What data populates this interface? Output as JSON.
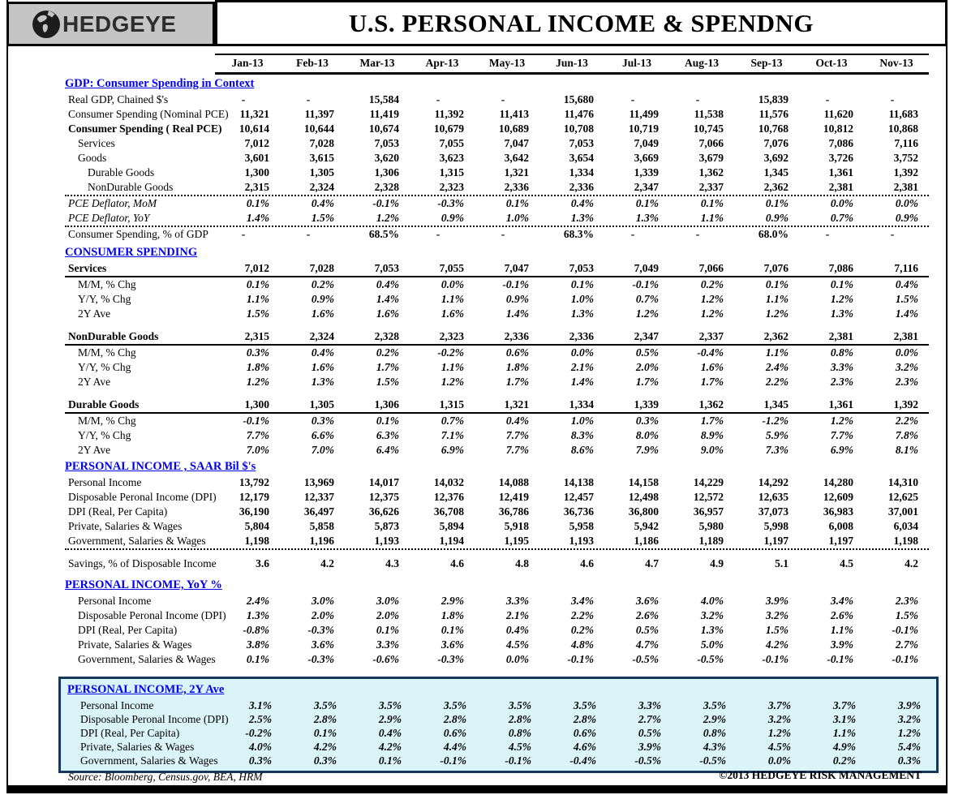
{
  "header": {
    "logo_text": "HEDGEYE",
    "title": "U.S. PERSONAL INCOME & SPENDNG"
  },
  "footer": {
    "source": "Source: Bloomberg, Census.gov, BEA, HRM",
    "copyright": "©2013 HEDGEYE RISK MANAGEMENT"
  },
  "colors": {
    "section_title_blue": "#0000EE",
    "highlight_bg": "#DAF4F9",
    "highlight_border": "#17375D",
    "logo_bg": "#C5C5C5"
  },
  "chart_data": {
    "type": "table",
    "title": "U.S. PERSONAL INCOME & SPENDNG",
    "columns": [
      "Jan-13",
      "Feb-13",
      "Mar-13",
      "Apr-13",
      "May-13",
      "Jun-13",
      "Jul-13",
      "Aug-13",
      "Sep-13",
      "Oct-13",
      "Nov-13"
    ],
    "sections": [
      {
        "title": "GDP: Consumer Spending in Context",
        "rows": [
          {
            "label": "Real GDP, Chained $'s",
            "values": [
              "-",
              "-",
              "15,584",
              "-",
              "-",
              "15,680",
              "-",
              "-",
              "15,839",
              "-",
              "-"
            ]
          },
          {
            "label": "Consumer Spending (Nominal PCE)",
            "values": [
              "11,321",
              "11,397",
              "11,419",
              "11,392",
              "11,413",
              "11,476",
              "11,499",
              "11,538",
              "11,576",
              "11,620",
              "11,683"
            ]
          },
          {
            "label": "Consumer Spending ( Real PCE)",
            "bold": true,
            "values": [
              "10,614",
              "10,644",
              "10,674",
              "10,679",
              "10,689",
              "10,708",
              "10,719",
              "10,745",
              "10,768",
              "10,812",
              "10,868"
            ]
          },
          {
            "label": "Services",
            "indent": 1,
            "values": [
              "7,012",
              "7,028",
              "7,053",
              "7,055",
              "7,047",
              "7,053",
              "7,049",
              "7,066",
              "7,076",
              "7,086",
              "7,116"
            ]
          },
          {
            "label": "Goods",
            "indent": 1,
            "values": [
              "3,601",
              "3,615",
              "3,620",
              "3,623",
              "3,642",
              "3,654",
              "3,669",
              "3,679",
              "3,692",
              "3,726",
              "3,752"
            ]
          },
          {
            "label": "Durable Goods",
            "indent": 2,
            "values": [
              "1,300",
              "1,305",
              "1,306",
              "1,315",
              "1,321",
              "1,334",
              "1,339",
              "1,362",
              "1,345",
              "1,361",
              "1,392"
            ]
          },
          {
            "label": "NonDurable Goods",
            "indent": 2,
            "rule": "dotted",
            "values": [
              "2,315",
              "2,324",
              "2,328",
              "2,323",
              "2,336",
              "2,336",
              "2,347",
              "2,337",
              "2,362",
              "2,381",
              "2,381"
            ]
          },
          {
            "label": "PCE Deflator, MoM",
            "italic": true,
            "pct": true,
            "values": [
              "0.1%",
              "0.4%",
              "-0.1%",
              "-0.3%",
              "0.1%",
              "0.4%",
              "0.1%",
              "0.1%",
              "0.1%",
              "0.0%",
              "0.0%"
            ]
          },
          {
            "label": "PCE Deflator, YoY",
            "italic": true,
            "pct": true,
            "rule": "dotted",
            "values": [
              "1.4%",
              "1.5%",
              "1.2%",
              "0.9%",
              "1.0%",
              "1.3%",
              "1.3%",
              "1.1%",
              "0.9%",
              "0.7%",
              "0.9%"
            ]
          },
          {
            "label": "Consumer Spending, % of GDP",
            "values": [
              "-",
              "-",
              "68.5%",
              "-",
              "-",
              "68.3%",
              "-",
              "-",
              "68.0%",
              "-",
              "-"
            ]
          }
        ]
      },
      {
        "title": "CONSUMER SPENDING",
        "rows": [
          {
            "label": "Services",
            "bold": true,
            "rule": "thick",
            "values": [
              "7,012",
              "7,028",
              "7,053",
              "7,055",
              "7,047",
              "7,053",
              "7,049",
              "7,066",
              "7,076",
              "7,086",
              "7,116"
            ]
          },
          {
            "label": "M/M, % Chg",
            "indent": 1,
            "pct": true,
            "values": [
              "0.1%",
              "0.2%",
              "0.4%",
              "0.0%",
              "-0.1%",
              "0.1%",
              "-0.1%",
              "0.2%",
              "0.1%",
              "0.1%",
              "0.4%"
            ]
          },
          {
            "label": "Y/Y, % Chg",
            "indent": 1,
            "pct": true,
            "values": [
              "1.1%",
              "0.9%",
              "1.4%",
              "1.1%",
              "0.9%",
              "1.0%",
              "0.7%",
              "1.2%",
              "1.1%",
              "1.2%",
              "1.5%"
            ]
          },
          {
            "label": "2Y Ave",
            "indent": 1,
            "pct": true,
            "values": [
              "1.5%",
              "1.6%",
              "1.6%",
              "1.6%",
              "1.4%",
              "1.3%",
              "1.2%",
              "1.2%",
              "1.2%",
              "1.3%",
              "1.4%"
            ]
          },
          {
            "label": "NonDurable Goods",
            "bold": true,
            "gap": true,
            "rule": "thick",
            "values": [
              "2,315",
              "2,324",
              "2,328",
              "2,323",
              "2,336",
              "2,336",
              "2,347",
              "2,337",
              "2,362",
              "2,381",
              "2,381"
            ]
          },
          {
            "label": "M/M, % Chg",
            "indent": 1,
            "pct": true,
            "values": [
              "0.3%",
              "0.4%",
              "0.2%",
              "-0.2%",
              "0.6%",
              "0.0%",
              "0.5%",
              "-0.4%",
              "1.1%",
              "0.8%",
              "0.0%"
            ]
          },
          {
            "label": "Y/Y, % Chg",
            "indent": 1,
            "pct": true,
            "values": [
              "1.8%",
              "1.6%",
              "1.7%",
              "1.1%",
              "1.8%",
              "2.1%",
              "2.0%",
              "1.6%",
              "2.4%",
              "3.3%",
              "3.2%"
            ]
          },
          {
            "label": "2Y Ave",
            "indent": 1,
            "pct": true,
            "values": [
              "1.2%",
              "1.3%",
              "1.5%",
              "1.2%",
              "1.7%",
              "1.4%",
              "1.7%",
              "1.7%",
              "2.2%",
              "2.3%",
              "2.3%"
            ]
          },
          {
            "label": "Durable Goods",
            "bold": true,
            "gap": true,
            "rule": "thick",
            "values": [
              "1,300",
              "1,305",
              "1,306",
              "1,315",
              "1,321",
              "1,334",
              "1,339",
              "1,362",
              "1,345",
              "1,361",
              "1,392"
            ]
          },
          {
            "label": "M/M, % Chg",
            "indent": 1,
            "pct": true,
            "values": [
              "-0.1%",
              "0.3%",
              "0.1%",
              "0.7%",
              "0.4%",
              "1.0%",
              "0.3%",
              "1.7%",
              "-1.2%",
              "1.2%",
              "2.2%"
            ]
          },
          {
            "label": "Y/Y, % Chg",
            "indent": 1,
            "pct": true,
            "values": [
              "7.7%",
              "6.6%",
              "6.3%",
              "7.1%",
              "7.7%",
              "8.3%",
              "8.0%",
              "8.9%",
              "5.9%",
              "7.7%",
              "7.8%"
            ]
          },
          {
            "label": "2Y Ave",
            "indent": 1,
            "pct": true,
            "values": [
              "7.0%",
              "7.0%",
              "6.4%",
              "6.9%",
              "7.7%",
              "8.6%",
              "7.9%",
              "9.0%",
              "7.3%",
              "6.9%",
              "8.1%"
            ]
          }
        ]
      },
      {
        "title": "PERSONAL INCOME , SAAR Bil $'s",
        "rows": [
          {
            "label": "Personal Income",
            "values": [
              "13,792",
              "13,969",
              "14,017",
              "14,032",
              "14,088",
              "14,138",
              "14,158",
              "14,229",
              "14,292",
              "14,280",
              "14,310"
            ]
          },
          {
            "label": "Disposable Peronal Income (DPI)",
            "values": [
              "12,179",
              "12,337",
              "12,375",
              "12,376",
              "12,419",
              "12,457",
              "12,498",
              "12,572",
              "12,635",
              "12,609",
              "12,625"
            ]
          },
          {
            "label": "DPI (Real, Per Capita)",
            "values": [
              "36,190",
              "36,497",
              "36,626",
              "36,708",
              "36,786",
              "36,736",
              "36,800",
              "36,957",
              "37,073",
              "36,983",
              "37,001"
            ]
          },
          {
            "label": "Private, Salaries & Wages",
            "values": [
              "5,804",
              "5,858",
              "5,873",
              "5,894",
              "5,918",
              "5,958",
              "5,942",
              "5,980",
              "5,998",
              "6,008",
              "6,034"
            ]
          },
          {
            "label": "Government, Salaries & Wages",
            "rule": "dotted",
            "values": [
              "1,198",
              "1,196",
              "1,193",
              "1,194",
              "1,195",
              "1,193",
              "1,186",
              "1,189",
              "1,197",
              "1,197",
              "1,198"
            ]
          },
          {
            "label": "Savings, % of Disposable Income",
            "gap8": true,
            "values": [
              "3.6",
              "4.2",
              "4.3",
              "4.6",
              "4.8",
              "4.6",
              "4.7",
              "4.9",
              "5.1",
              "4.5",
              "4.2"
            ]
          }
        ]
      },
      {
        "title": "PERSONAL INCOME, YoY %",
        "rows": [
          {
            "label": "Personal Income",
            "indent": 1,
            "pct": true,
            "values": [
              "2.4%",
              "3.0%",
              "3.0%",
              "2.9%",
              "3.3%",
              "3.4%",
              "3.6%",
              "4.0%",
              "3.9%",
              "3.4%",
              "2.3%"
            ]
          },
          {
            "label": "Disposable Peronal Income (DPI)",
            "indent": 1,
            "pct": true,
            "values": [
              "1.3%",
              "2.0%",
              "2.0%",
              "1.8%",
              "2.1%",
              "2.2%",
              "2.6%",
              "3.2%",
              "3.2%",
              "2.6%",
              "1.5%"
            ]
          },
          {
            "label": "DPI (Real, Per Capita)",
            "indent": 1,
            "pct": true,
            "values": [
              "-0.8%",
              "-0.3%",
              "0.1%",
              "0.1%",
              "0.4%",
              "0.2%",
              "0.5%",
              "1.3%",
              "1.5%",
              "1.1%",
              "-0.1%"
            ]
          },
          {
            "label": "Private, Salaries & Wages",
            "indent": 1,
            "pct": true,
            "values": [
              "3.8%",
              "3.6%",
              "3.3%",
              "3.6%",
              "4.5%",
              "4.8%",
              "4.7%",
              "5.0%",
              "4.2%",
              "3.9%",
              "2.7%"
            ]
          },
          {
            "label": "Government, Salaries & Wages",
            "indent": 1,
            "pct": true,
            "values": [
              "0.1%",
              "-0.3%",
              "-0.6%",
              "-0.3%",
              "0.0%",
              "-0.1%",
              "-0.5%",
              "-0.5%",
              "-0.1%",
              "-0.1%",
              "-0.1%"
            ]
          }
        ]
      },
      {
        "title": "PERSONAL INCOME, 2Y Ave",
        "highlighted": true,
        "rows": [
          {
            "label": "Personal Income",
            "indent": 1,
            "pct": true,
            "values": [
              "3.1%",
              "3.5%",
              "3.5%",
              "3.5%",
              "3.5%",
              "3.5%",
              "3.3%",
              "3.5%",
              "3.7%",
              "3.7%",
              "3.9%"
            ]
          },
          {
            "label": "Disposable Peronal Income (DPI)",
            "indent": 1,
            "pct": true,
            "values": [
              "2.5%",
              "2.8%",
              "2.9%",
              "2.8%",
              "2.8%",
              "2.8%",
              "2.7%",
              "2.9%",
              "3.2%",
              "3.1%",
              "3.2%"
            ]
          },
          {
            "label": "DPI (Real, Per Capita)",
            "indent": 1,
            "pct": true,
            "values": [
              "-0.2%",
              "0.1%",
              "0.4%",
              "0.6%",
              "0.8%",
              "0.6%",
              "0.5%",
              "0.8%",
              "1.2%",
              "1.1%",
              "1.2%"
            ]
          },
          {
            "label": "Private, Salaries & Wages",
            "indent": 1,
            "pct": true,
            "values": [
              "4.0%",
              "4.2%",
              "4.2%",
              "4.4%",
              "4.5%",
              "4.6%",
              "3.9%",
              "4.3%",
              "4.5%",
              "4.9%",
              "5.4%"
            ]
          },
          {
            "label": "Government, Salaries & Wages",
            "indent": 1,
            "pct": true,
            "values": [
              "0.3%",
              "0.3%",
              "0.1%",
              "-0.1%",
              "-0.1%",
              "-0.4%",
              "-0.5%",
              "-0.5%",
              "0.0%",
              "0.2%",
              "0.3%"
            ]
          }
        ]
      }
    ]
  }
}
